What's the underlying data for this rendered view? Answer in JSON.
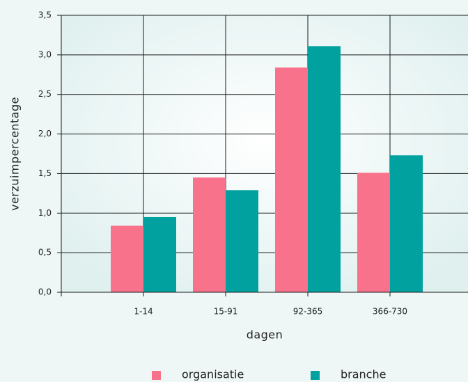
{
  "chart_data": {
    "type": "bar",
    "x_label": "dagen",
    "y_label": "verzuimpercentage",
    "categories": [
      "1-14",
      "15-91",
      "92-365",
      "366-730"
    ],
    "series": [
      {
        "name": "organisatie",
        "color": "#f7728a",
        "values": [
          0.84,
          1.45,
          2.84,
          1.51
        ]
      },
      {
        "name": "branche",
        "color": "#00a19e",
        "values": [
          0.95,
          1.29,
          3.11,
          1.73
        ]
      }
    ],
    "ylim": [
      0,
      3.5
    ],
    "yticks": [
      {
        "value": 0,
        "label": "0,0"
      },
      {
        "value": 0.5,
        "label": "0,5"
      },
      {
        "value": 1,
        "label": "1,0"
      },
      {
        "value": 1.5,
        "label": "1,5"
      },
      {
        "value": 2,
        "label": "2,0"
      },
      {
        "value": 2.5,
        "label": "2,5"
      },
      {
        "value": 3,
        "label": "3,0"
      },
      {
        "value": 3.5,
        "label": "3,5"
      }
    ],
    "grid": true
  }
}
